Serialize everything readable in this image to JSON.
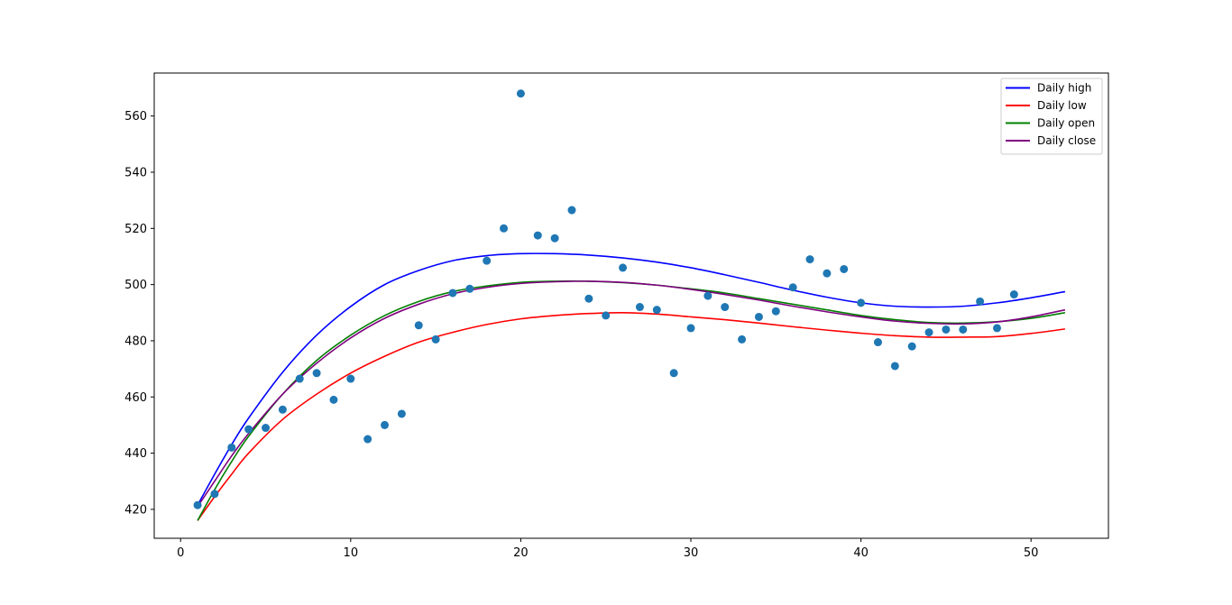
{
  "chart_data": {
    "type": "line",
    "title": "",
    "xlabel": "",
    "ylabel": "",
    "xlim": [
      -1.55,
      54.55
    ],
    "ylim": [
      409.7,
      575.3
    ],
    "xticks": [
      0,
      10,
      20,
      30,
      40,
      50
    ],
    "yticks": [
      420,
      440,
      460,
      480,
      500,
      520,
      540,
      560
    ],
    "grid": false,
    "legend": "top-right",
    "series": [
      {
        "name": "Daily high",
        "color": "#0000ff",
        "x": [
          1,
          2,
          3,
          4,
          6,
          8,
          10,
          12,
          14,
          16,
          18,
          20,
          22,
          24,
          26,
          28,
          30,
          32,
          34,
          36,
          38,
          40,
          42,
          44,
          46,
          48,
          50,
          52
        ],
        "y": [
          421.5,
          432.5,
          443.0,
          452.5,
          468.8,
          482.0,
          492.2,
          500.0,
          505.0,
          508.5,
          510.3,
          511.0,
          511.0,
          510.5,
          509.5,
          508.0,
          506.0,
          503.5,
          500.8,
          498.0,
          495.5,
          493.5,
          492.3,
          492.0,
          492.3,
          493.5,
          495.3,
          497.5
        ]
      },
      {
        "name": "Daily low",
        "color": "#ff0000",
        "x": [
          1,
          2,
          3,
          4,
          6,
          8,
          10,
          12,
          14,
          16,
          18,
          20,
          22,
          24,
          26,
          28,
          30,
          32,
          34,
          36,
          38,
          40,
          42,
          44,
          46,
          48,
          50,
          52
        ],
        "y": [
          416.0,
          424.5,
          432.5,
          440.0,
          452.0,
          461.0,
          468.5,
          474.5,
          479.5,
          483.0,
          485.8,
          487.8,
          489.0,
          489.7,
          490.0,
          489.5,
          488.5,
          487.5,
          486.3,
          485.0,
          483.8,
          482.7,
          481.8,
          481.3,
          481.3,
          481.5,
          482.6,
          484.2
        ]
      },
      {
        "name": "Daily open",
        "color": "#008000",
        "x": [
          1,
          2,
          3,
          4,
          6,
          8,
          10,
          12,
          14,
          16,
          18,
          20,
          22,
          24,
          26,
          28,
          30,
          32,
          34,
          36,
          38,
          40,
          42,
          44,
          46,
          48,
          50,
          52
        ],
        "y": [
          416.0,
          427.0,
          437.0,
          446.0,
          461.0,
          473.0,
          482.0,
          489.0,
          494.0,
          497.5,
          499.5,
          500.8,
          501.2,
          501.2,
          500.7,
          499.8,
          498.5,
          497.0,
          495.0,
          493.0,
          491.0,
          489.0,
          487.5,
          486.5,
          486.3,
          486.8,
          488.0,
          490.0
        ]
      },
      {
        "name": "Daily close",
        "color": "#800080",
        "x": [
          1,
          2,
          3,
          4,
          6,
          8,
          10,
          12,
          14,
          16,
          18,
          20,
          22,
          24,
          26,
          28,
          30,
          32,
          34,
          36,
          38,
          40,
          42,
          44,
          46,
          48,
          50,
          52
        ],
        "y": [
          421.0,
          430.0,
          439.0,
          447.0,
          461.0,
          472.0,
          481.0,
          488.0,
          493.0,
          496.7,
          499.0,
          500.4,
          501.0,
          501.2,
          500.8,
          499.8,
          498.3,
          496.5,
          494.5,
          492.3,
          490.3,
          488.5,
          487.0,
          486.2,
          486.0,
          486.7,
          488.5,
          491.0
        ]
      }
    ],
    "scatter": {
      "color": "#1f77b4",
      "x": [
        1,
        2,
        3,
        4,
        5,
        6,
        7,
        8,
        9,
        10,
        11,
        12,
        13,
        14,
        15,
        16,
        17,
        18,
        19,
        20,
        21,
        22,
        23,
        24,
        25,
        26,
        27,
        28,
        29,
        30,
        31,
        32,
        33,
        34,
        35,
        36,
        37,
        38,
        39,
        40,
        41,
        42,
        43,
        44,
        45,
        46,
        47,
        48,
        49
      ],
      "y": [
        421.5,
        425.5,
        442.0,
        448.5,
        449.0,
        455.5,
        466.5,
        468.5,
        459.0,
        466.5,
        445.0,
        450.0,
        454.0,
        485.5,
        480.5,
        497.0,
        498.5,
        508.5,
        520.0,
        568.0,
        517.5,
        516.5,
        526.5,
        495.0,
        489.0,
        506.0,
        492.0,
        491.0,
        468.5,
        484.5,
        496.0,
        492.0,
        480.5,
        488.5,
        490.5,
        499.0,
        509.0,
        504.0,
        505.5,
        493.5,
        479.5,
        471.0,
        478.0,
        483.0,
        484.0,
        484.0,
        494.0,
        484.5,
        496.5
      ]
    }
  }
}
